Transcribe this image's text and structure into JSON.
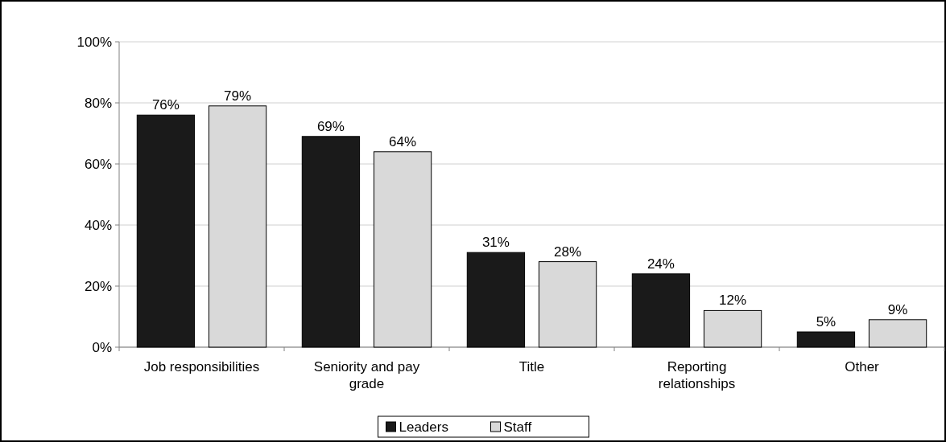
{
  "chart_data": {
    "type": "bar",
    "categories": [
      "Job responsibilities",
      "Seniority and pay grade",
      "Title",
      "Reporting relationships",
      "Other"
    ],
    "series": [
      {
        "name": "Leaders",
        "color": "#1a1a1a",
        "values": [
          76,
          69,
          31,
          24,
          5
        ],
        "value_labels": [
          "76%",
          "69%",
          "31%",
          "24%",
          "5%"
        ]
      },
      {
        "name": "Staff",
        "color": "#d9d9d9",
        "values": [
          79,
          64,
          28,
          12,
          9
        ],
        "value_labels": [
          "79%",
          "64%",
          "28%",
          "12%",
          "9%"
        ]
      }
    ],
    "ylim": [
      0,
      100
    ],
    "yticks": [
      {
        "value": 0,
        "label": "0%"
      },
      {
        "value": 20,
        "label": "20%"
      },
      {
        "value": 40,
        "label": "40%"
      },
      {
        "value": 60,
        "label": "60%"
      },
      {
        "value": 80,
        "label": "80%"
      },
      {
        "value": 100,
        "label": "100%"
      }
    ],
    "grid": "y",
    "legend": "bottom"
  }
}
